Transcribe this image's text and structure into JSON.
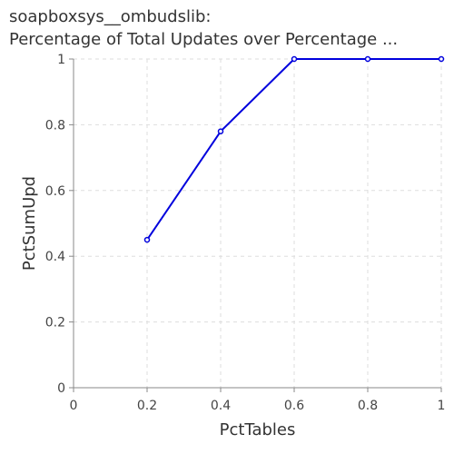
{
  "chart_data": {
    "type": "line",
    "title_line1": "soapboxsys__ombudslib:",
    "title_line2": "Percentage of Total Updates over Percentage ...",
    "xlabel": "PctTables",
    "ylabel": "PctSumUpd",
    "xlim": [
      0,
      1
    ],
    "ylim": [
      0,
      1
    ],
    "x_ticks": [
      "0",
      "0.2",
      "0.4",
      "0.6",
      "0.8",
      "1"
    ],
    "y_ticks": [
      "0",
      "0.2",
      "0.4",
      "0.6",
      "0.8",
      "1"
    ],
    "grid": true,
    "series": [
      {
        "color": "#0000dd",
        "points": [
          {
            "x": 0.2,
            "y": 0.45
          },
          {
            "x": 0.4,
            "y": 0.78
          },
          {
            "x": 0.6,
            "y": 1.0
          },
          {
            "x": 0.8,
            "y": 1.0
          },
          {
            "x": 1.0,
            "y": 1.0
          }
        ]
      }
    ]
  }
}
